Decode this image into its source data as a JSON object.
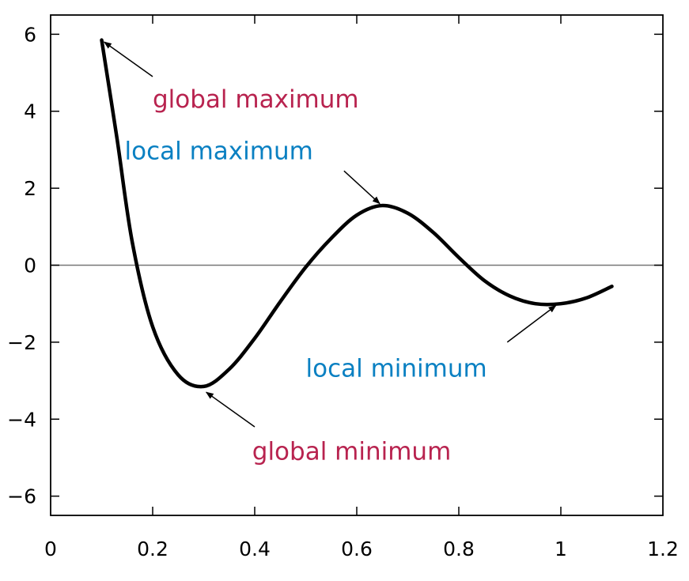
{
  "chart_data": {
    "type": "line",
    "title": "",
    "xlabel": "",
    "ylabel": "",
    "xlim": [
      0,
      1.2
    ],
    "ylim": [
      -6.5,
      6.5
    ],
    "grid": false,
    "x_ticks": [
      0,
      0.2,
      0.4,
      0.6,
      0.8,
      1,
      1.2
    ],
    "x_tick_labels": [
      "0",
      "0.2",
      "0.4",
      "0.6",
      "0.8",
      "1",
      "1.2"
    ],
    "y_ticks": [
      -6,
      -4,
      -2,
      0,
      2,
      4,
      6
    ],
    "y_tick_labels": [
      "−6",
      "−4",
      "−2",
      "0",
      "2",
      "4",
      "6"
    ],
    "zero_line": true,
    "series": [
      {
        "color": "#000000",
        "points": [
          [
            0.1,
            5.85
          ],
          [
            0.13,
            3.3
          ],
          [
            0.16,
            0.6
          ],
          [
            0.2,
            -1.6
          ],
          [
            0.25,
            -2.85
          ],
          [
            0.3,
            -3.15
          ],
          [
            0.35,
            -2.7
          ],
          [
            0.4,
            -1.9
          ],
          [
            0.45,
            -0.95
          ],
          [
            0.5,
            -0.05
          ],
          [
            0.55,
            0.7
          ],
          [
            0.6,
            1.3
          ],
          [
            0.65,
            1.55
          ],
          [
            0.7,
            1.35
          ],
          [
            0.75,
            0.85
          ],
          [
            0.8,
            0.2
          ],
          [
            0.85,
            -0.4
          ],
          [
            0.9,
            -0.8
          ],
          [
            0.95,
            -1.0
          ],
          [
            1.0,
            -1.0
          ],
          [
            1.05,
            -0.85
          ],
          [
            1.1,
            -0.55
          ]
        ]
      }
    ],
    "annotations": [
      {
        "text": "global maximum",
        "color": "#b8234f",
        "x": 0.2,
        "y": 4.1,
        "arrow_from": [
          0.2,
          4.9
        ],
        "arrow_to": [
          0.105,
          5.8
        ]
      },
      {
        "text": "local maximum",
        "color": "#0a80c2",
        "x": 0.145,
        "y": 2.75,
        "arrow_from": [
          0.575,
          2.45
        ],
        "arrow_to": [
          0.645,
          1.6
        ]
      },
      {
        "text": "local minimum",
        "color": "#0a80c2",
        "x": 0.5,
        "y": -2.9,
        "arrow_from": [
          0.895,
          -2.0
        ],
        "arrow_to": [
          0.99,
          -1.05
        ]
      },
      {
        "text": "global minimum",
        "color": "#b8234f",
        "x": 0.395,
        "y": -5.05,
        "arrow_from": [
          0.4,
          -4.2
        ],
        "arrow_to": [
          0.305,
          -3.3
        ]
      }
    ]
  }
}
